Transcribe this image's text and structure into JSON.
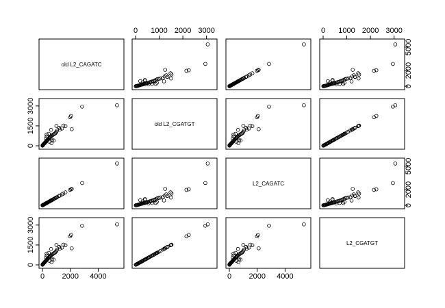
{
  "chart_data": {
    "type": "scatter",
    "matrix": "pairs",
    "variables": [
      "old L2_CAGATC",
      "old L2_CGATGT",
      "L2_CAGATC",
      "L2_CGATGT"
    ],
    "axis_ticks": {
      "old L2_CAGATC": [
        0,
        2000,
        4000
      ],
      "old L2_CGATGT": [
        0,
        1500,
        3000
      ],
      "L2_CAGATC": [
        0,
        2000,
        4000
      ],
      "L2_CGATGT": [
        0,
        1000,
        2000,
        3000
      ]
    },
    "right_axis_ticks": {
      "old L2_CAGATC": [
        0,
        2000,
        5000
      ],
      "L2_CAGATC": [
        0,
        2000,
        5000
      ]
    },
    "axis_ranges": {
      "old L2_CAGATC": [
        0,
        5600
      ],
      "old L2_CGATGT": [
        0,
        3300
      ],
      "L2_CAGATC": [
        0,
        5600
      ],
      "L2_CGATGT": [
        0,
        3300
      ]
    },
    "points": {
      "cagatc": [
        5350,
        2850,
        2050,
        1980,
        2100,
        1500,
        1650,
        1200,
        1400,
        1250,
        1050,
        1000,
        950,
        900,
        820,
        760,
        700,
        650,
        600,
        560,
        520,
        480,
        440,
        400,
        380,
        350,
        320,
        300,
        280,
        250,
        220,
        200,
        180,
        160,
        140,
        120,
        100,
        80,
        60,
        40,
        20,
        10,
        5,
        300,
        450,
        620,
        1200,
        800,
        1000,
        650,
        300,
        500,
        700,
        250
      ],
      "cgatgt": [
        3050,
        2950,
        2250,
        2150,
        1250,
        1520,
        1480,
        1350,
        1300,
        1230,
        1150,
        1050,
        980,
        920,
        880,
        830,
        790,
        750,
        700,
        660,
        610,
        570,
        530,
        490,
        460,
        430,
        400,
        370,
        340,
        310,
        280,
        260,
        230,
        200,
        180,
        160,
        140,
        110,
        90,
        70,
        50,
        30,
        10,
        850,
        900,
        1200,
        1350,
        400,
        1500,
        200,
        700,
        300,
        400,
        550
      ]
    },
    "grid": false,
    "legend": "none"
  }
}
